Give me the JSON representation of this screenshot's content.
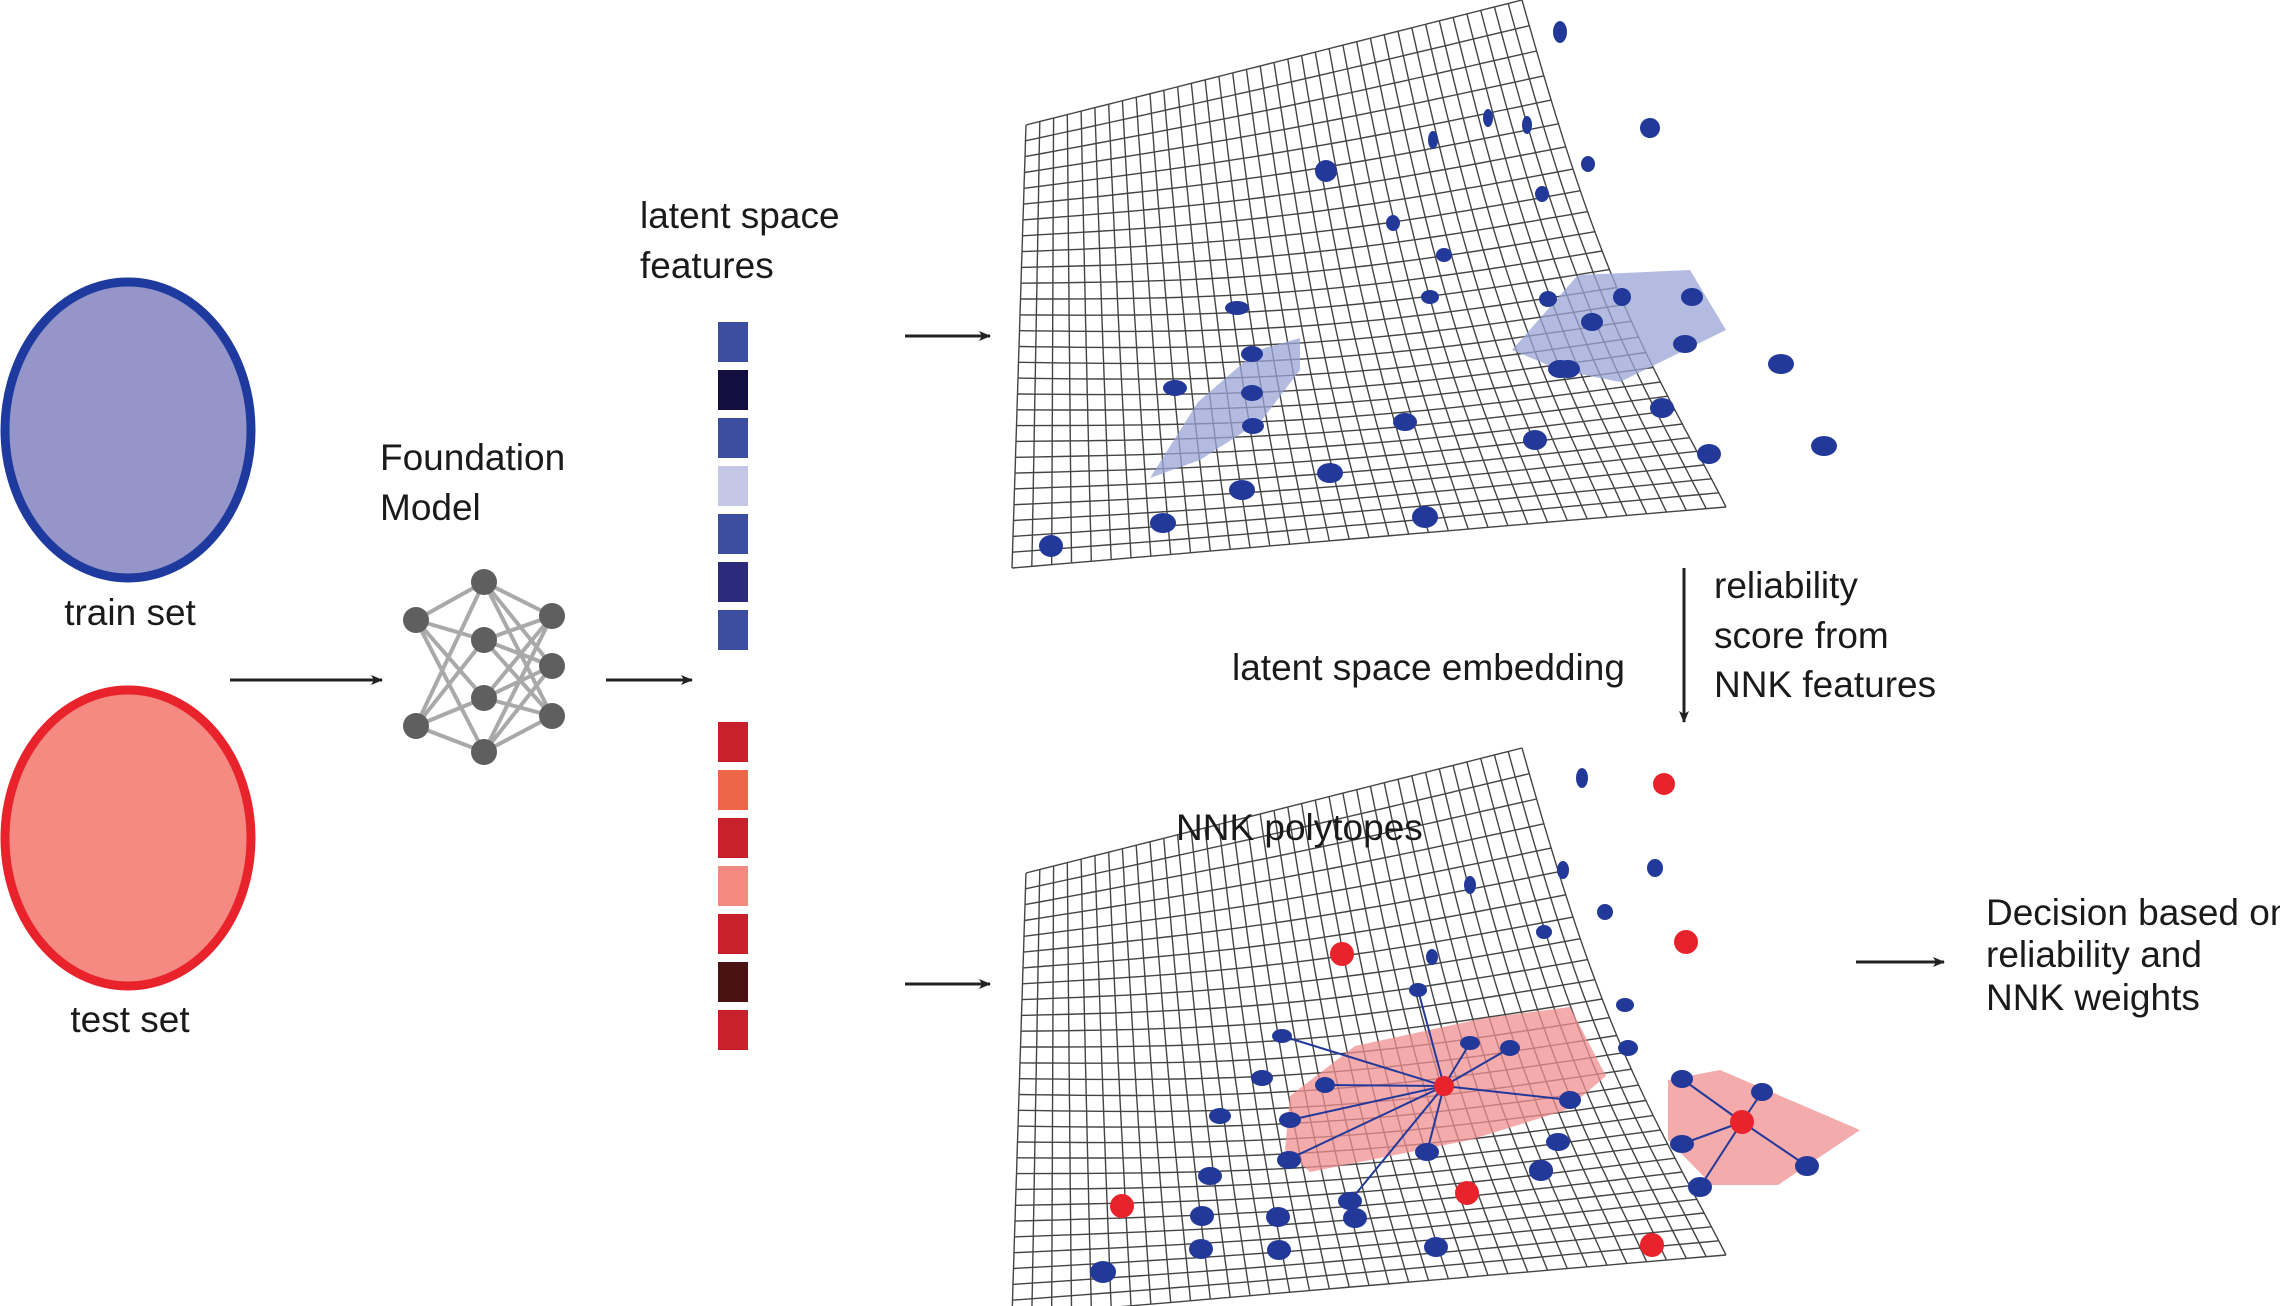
{
  "labels": {
    "train_set": "train set",
    "test_set": "test set",
    "foundation_line1": "Foundation",
    "foundation_line2": "Model",
    "latent_line1": "latent space",
    "latent_line2": "features",
    "latent_embedding": "latent space embedding",
    "reliability_line1": "reliability",
    "reliability_line2": "score from",
    "reliability_line3": "NNK features",
    "nnk_polytopes": "NNK polytopes",
    "decision_line1": "Decision based on",
    "decision_line2": "reliability and",
    "decision_line3": "NNK weights"
  },
  "colors": {
    "train_fill": "#9595c9",
    "train_stroke": "#1e3a9e",
    "test_fill": "#f48a82",
    "test_stroke": "#e8232b",
    "node": "#5f5f5f",
    "edge": "#a9a9a9",
    "grid": "#444444",
    "train_point": "#23399a",
    "test_point": "#e8232b",
    "blue_polytope": "#9aa6d6",
    "red_polytope": "#f08f90",
    "arrow": "#222222"
  },
  "train_features": [
    "#3d4d9f",
    "#120f40",
    "#3d4d9f",
    "#c4c6e6",
    "#3d4d9f",
    "#2c2a7a",
    "#3d4d9f"
  ],
  "test_features": [
    "#c8212b",
    "#ee6648",
    "#c8212b",
    "#f28a82",
    "#c8212b",
    "#4a1212",
    "#c8212b"
  ]
}
